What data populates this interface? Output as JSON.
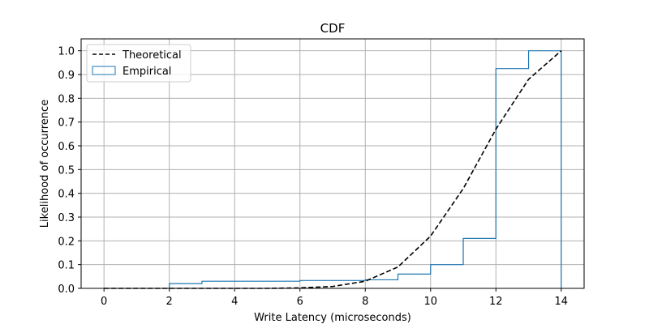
{
  "chart_data": {
    "type": "line",
    "title": "CDF",
    "xlabel": "Write Latency (microseconds)",
    "ylabel": "Likelihood of occurrence",
    "xlim": [
      -0.7,
      14.7
    ],
    "ylim": [
      0,
      1.05
    ],
    "xticks": [
      0,
      2,
      4,
      6,
      8,
      10,
      12,
      14
    ],
    "yticks": [
      0.0,
      0.1,
      0.2,
      0.3,
      0.4,
      0.5,
      0.6,
      0.7,
      0.8,
      0.9,
      1.0
    ],
    "grid": true,
    "legend_position": "upper-left",
    "series": [
      {
        "name": "Theoretical",
        "style": "dashed-line",
        "color": "#000000",
        "x": [
          0,
          1,
          2,
          3,
          4,
          5,
          6,
          7,
          8,
          9,
          10,
          11,
          12,
          13,
          14
        ],
        "y": [
          0.0,
          0.0,
          0.0,
          0.0,
          0.0,
          0.0,
          0.002,
          0.008,
          0.03,
          0.09,
          0.22,
          0.42,
          0.67,
          0.88,
          1.0
        ]
      },
      {
        "name": "Empirical",
        "style": "step-histogram",
        "color": "#1f77b4",
        "bin_edges": [
          2,
          3,
          6,
          8,
          9,
          10,
          11,
          12,
          13,
          14
        ],
        "cumulative": [
          0.02,
          0.03,
          0.033,
          0.036,
          0.06,
          0.1,
          0.21,
          0.925,
          1.0
        ]
      }
    ]
  }
}
